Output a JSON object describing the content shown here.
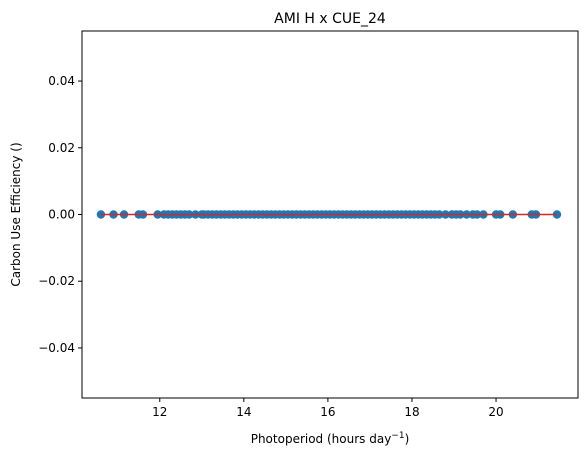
{
  "chart_data": {
    "type": "scatter",
    "title": "AMI H x CUE_24",
    "xlabel": "Photoperiod (hours day",
    "xlabel_superscript": "−1",
    "xlabel_suffix": ")",
    "ylabel": "Carbon Use Efficiency ()",
    "xlim": [
      10.15,
      21.95
    ],
    "ylim": [
      -0.055,
      0.055
    ],
    "xticks": [
      12,
      14,
      16,
      18,
      20
    ],
    "yticks": [
      -0.04,
      -0.02,
      0.0,
      0.02,
      0.04
    ],
    "ytick_labels": [
      "−0.04",
      "−0.02",
      "0.00",
      "0.02",
      "0.04"
    ],
    "grid": false,
    "colors": {
      "points": "#1f77b4",
      "fit_line": "#d62728"
    },
    "fit_line": {
      "x": [
        10.6,
        21.45
      ],
      "y": [
        0,
        0
      ]
    },
    "points": {
      "x": [
        10.6,
        10.9,
        11.15,
        11.5,
        11.6,
        11.95,
        12.1,
        12.2,
        12.3,
        12.4,
        12.5,
        12.6,
        12.7,
        12.85,
        13.0,
        13.05,
        13.15,
        13.25,
        13.35,
        13.45,
        13.55,
        13.65,
        13.75,
        13.85,
        13.95,
        14.05,
        14.15,
        14.25,
        14.35,
        14.45,
        14.55,
        14.65,
        14.75,
        14.85,
        14.95,
        15.05,
        15.15,
        15.25,
        15.35,
        15.45,
        15.55,
        15.65,
        15.75,
        15.85,
        15.95,
        16.05,
        16.15,
        16.25,
        16.35,
        16.45,
        16.55,
        16.65,
        16.75,
        16.85,
        16.95,
        17.05,
        17.15,
        17.25,
        17.35,
        17.45,
        17.55,
        17.65,
        17.75,
        17.85,
        17.95,
        18.05,
        18.15,
        18.25,
        18.35,
        18.45,
        18.55,
        18.65,
        18.8,
        18.95,
        19.05,
        19.15,
        19.3,
        19.45,
        19.55,
        19.7,
        20.0,
        20.1,
        20.4,
        20.85,
        20.95,
        21.45
      ],
      "y": [
        0,
        0,
        0,
        0,
        0,
        0,
        0,
        0,
        0,
        0,
        0,
        0,
        0,
        0,
        0,
        0,
        0,
        0,
        0,
        0,
        0,
        0,
        0,
        0,
        0,
        0,
        0,
        0,
        0,
        0,
        0,
        0,
        0,
        0,
        0,
        0,
        0,
        0,
        0,
        0,
        0,
        0,
        0,
        0,
        0,
        0,
        0,
        0,
        0,
        0,
        0,
        0,
        0,
        0,
        0,
        0,
        0,
        0,
        0,
        0,
        0,
        0,
        0,
        0,
        0,
        0,
        0,
        0,
        0,
        0,
        0,
        0,
        0,
        0,
        0,
        0,
        0,
        0,
        0,
        0,
        0,
        0,
        0,
        0,
        0,
        0
      ]
    }
  }
}
